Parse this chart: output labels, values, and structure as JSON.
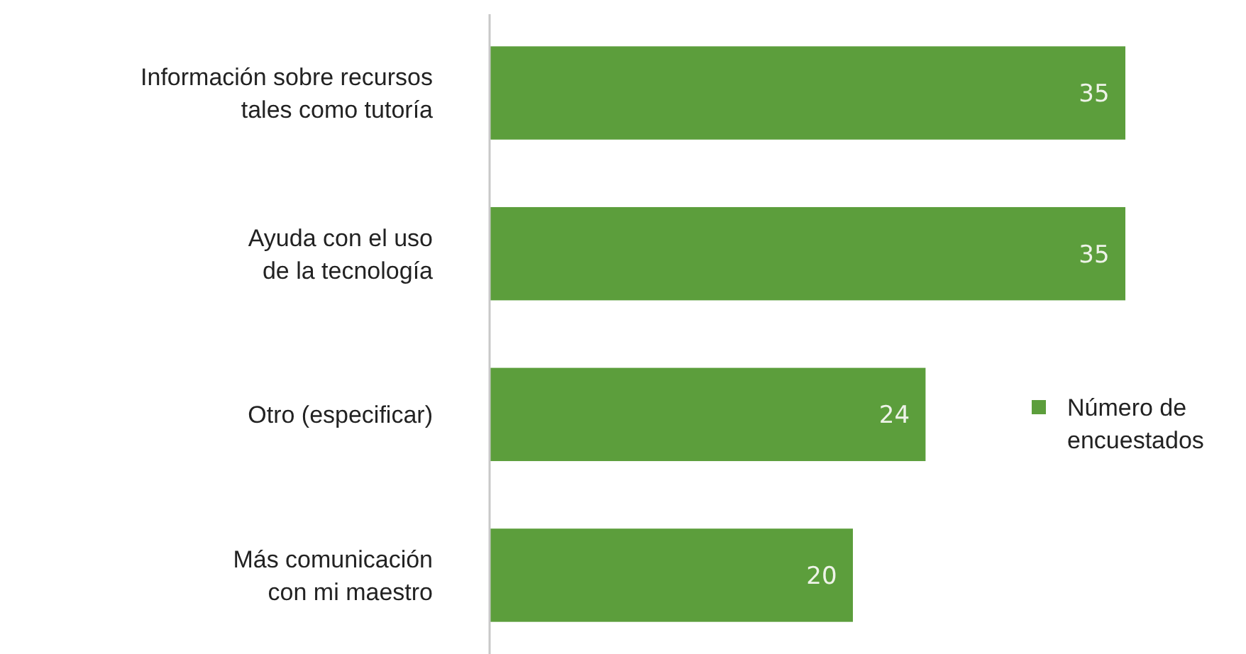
{
  "chart_data": {
    "type": "bar",
    "orientation": "horizontal",
    "categories": [
      "Información sobre recursos\ntales como tutoría",
      "Ayuda con el uso\nde la tecnología",
      "Otro (especificar)",
      "Más comunicación\ncon mi maestro"
    ],
    "series": [
      {
        "name": "Número de\nencuestados",
        "color": "#5c9e3c",
        "values": [
          35,
          35,
          24,
          20
        ]
      }
    ],
    "xlim": [
      0,
      35
    ],
    "data_labels": true,
    "legend": "right",
    "tick_labels": "y"
  }
}
